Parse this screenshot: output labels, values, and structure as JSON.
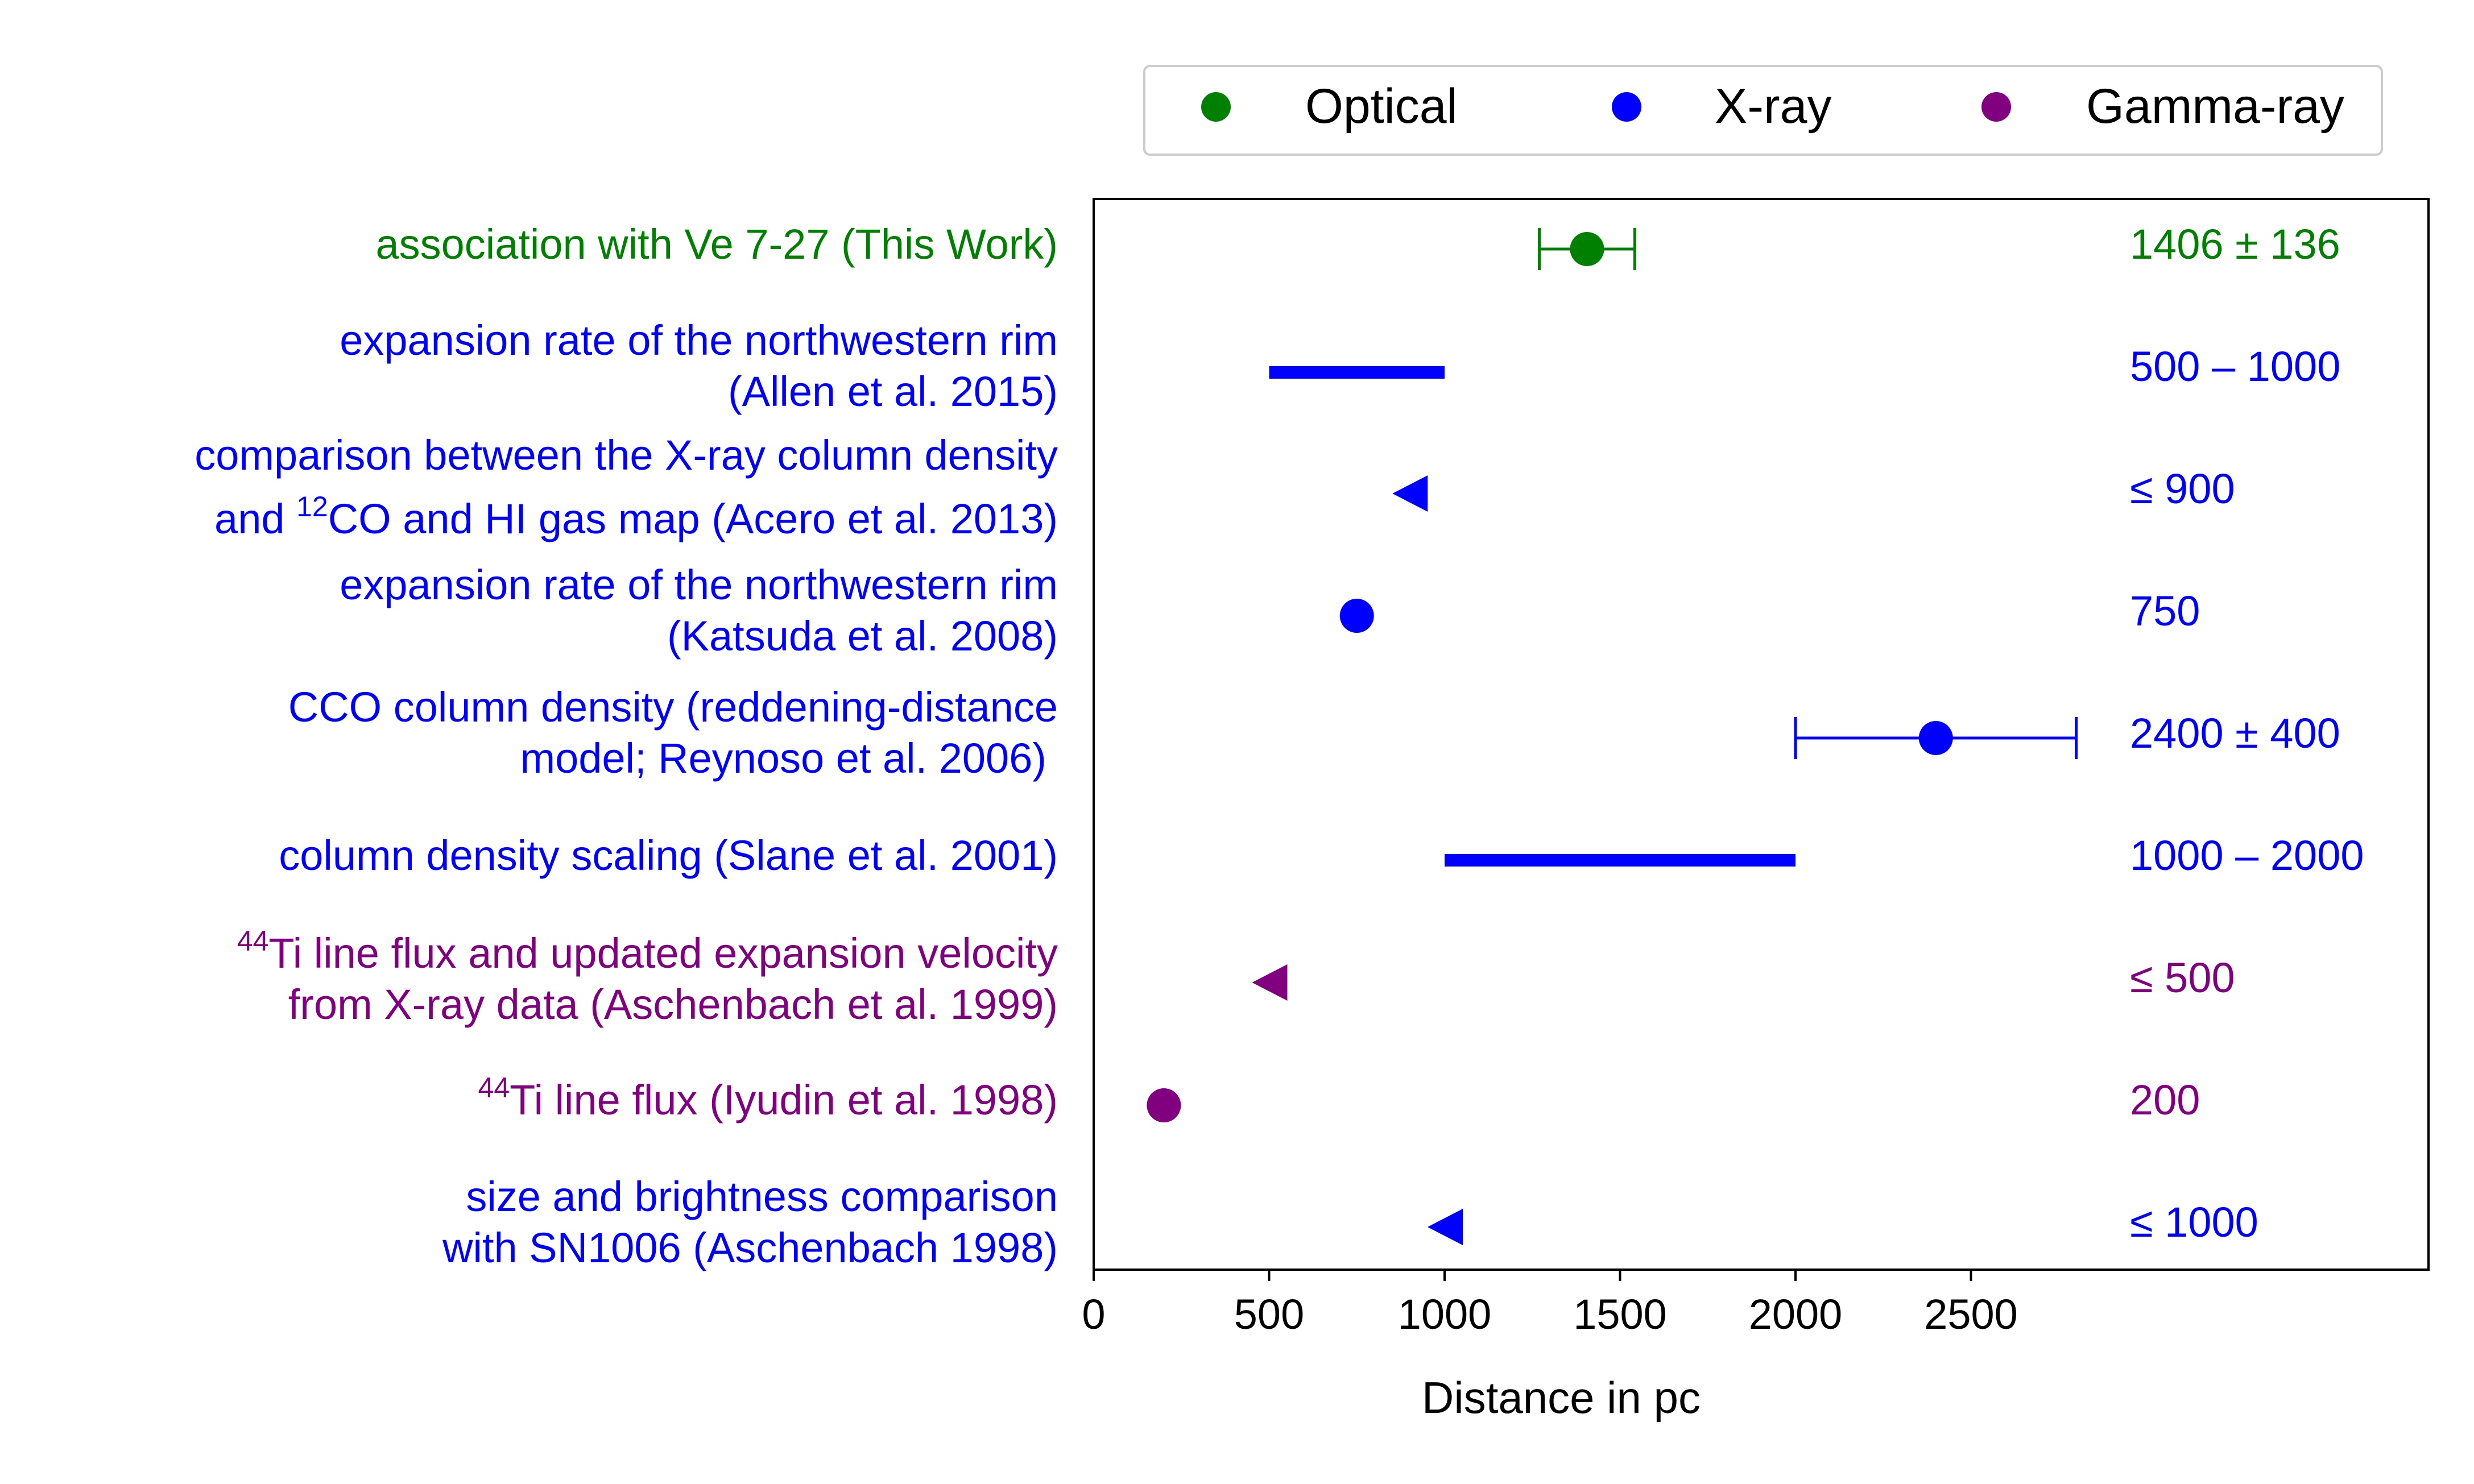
{
  "chart_data": {
    "type": "scatter",
    "xlabel": "Distance in pc",
    "xlim": [
      0,
      3800
    ],
    "xticks": [
      0,
      500,
      1000,
      1500,
      2000,
      2500
    ],
    "tick_labels": [
      "0",
      "500",
      "1000",
      "1500",
      "2000",
      "2500"
    ],
    "grid": false,
    "legend_position": "top-right, above plot",
    "legend": [
      {
        "name": "Optical",
        "color": "#008000"
      },
      {
        "name": "X-ray",
        "color": "#0000ff"
      },
      {
        "name": "Gamma-ray",
        "color": "#800080"
      }
    ],
    "rows": [
      {
        "lines": [
          "association with Ve 7-27 (This Work)"
        ],
        "label_text": "association with Ve 7-27 (This Work)",
        "category": "Optical",
        "color": "#008000",
        "marker": "point_err",
        "value": 1406,
        "err": 136,
        "value_text": "1406 ± 136"
      },
      {
        "lines": [
          "expansion rate of the northwestern rim",
          "(Allen et al. 2015)"
        ],
        "category": "X-ray",
        "color": "#0000ff",
        "marker": "range",
        "low": 500,
        "high": 1000,
        "value_text": "500 – 1000"
      },
      {
        "lines": [
          "comparison between the X-ray column density",
          "and ¹²CO and HI gas map (Acero et al. 2013)"
        ],
        "line2_pre": "and ",
        "line2_sup": "12",
        "line2_post": "CO and HI gas map (Acero et al. 2013)",
        "category": "X-ray",
        "color": "#0000ff",
        "marker": "upper_limit",
        "value": 900,
        "value_text": "≤ 900"
      },
      {
        "lines": [
          "expansion rate of the northwestern rim",
          "(Katsuda et al. 2008)"
        ],
        "category": "X-ray",
        "color": "#0000ff",
        "marker": "point",
        "value": 750,
        "value_text": "750"
      },
      {
        "lines": [
          "CCO column density (reddening-distance",
          "model; Reynoso et al. 2006)"
        ],
        "category": "X-ray",
        "color": "#0000ff",
        "marker": "point_err",
        "value": 2400,
        "err": 400,
        "value_text": "2400 ± 400"
      },
      {
        "lines": [
          "column density scaling (Slane et al. 2001)"
        ],
        "label_text": "column density scaling (Slane et al. 2001)",
        "category": "X-ray",
        "color": "#0000ff",
        "marker": "range",
        "low": 1000,
        "high": 2000,
        "value_text": "1000 – 2000"
      },
      {
        "lines": [
          "⁴⁴Ti line flux and updated expansion velocity",
          "from X-ray data (Aschenbach et al. 1999)"
        ],
        "line1_sup": "44",
        "line1_post": "Ti line flux and updated expansion velocity",
        "category": "Gamma-ray",
        "color": "#800080",
        "marker": "upper_limit",
        "value": 500,
        "value_text": "≤ 500"
      },
      {
        "lines": [
          "⁴⁴Ti line flux (Iyudin et al. 1998)"
        ],
        "line1_sup": "44",
        "line1_post": "Ti line flux (Iyudin et al. 1998)",
        "category": "Gamma-ray",
        "color": "#800080",
        "marker": "point",
        "value": 200,
        "value_text": "200"
      },
      {
        "lines": [
          "size and brightness comparison",
          "with SN1006 (Aschenbach 1998)"
        ],
        "category": "X-ray",
        "color": "#0000ff",
        "marker": "upper_limit",
        "value": 1000,
        "value_text": "≤ 1000"
      }
    ]
  }
}
